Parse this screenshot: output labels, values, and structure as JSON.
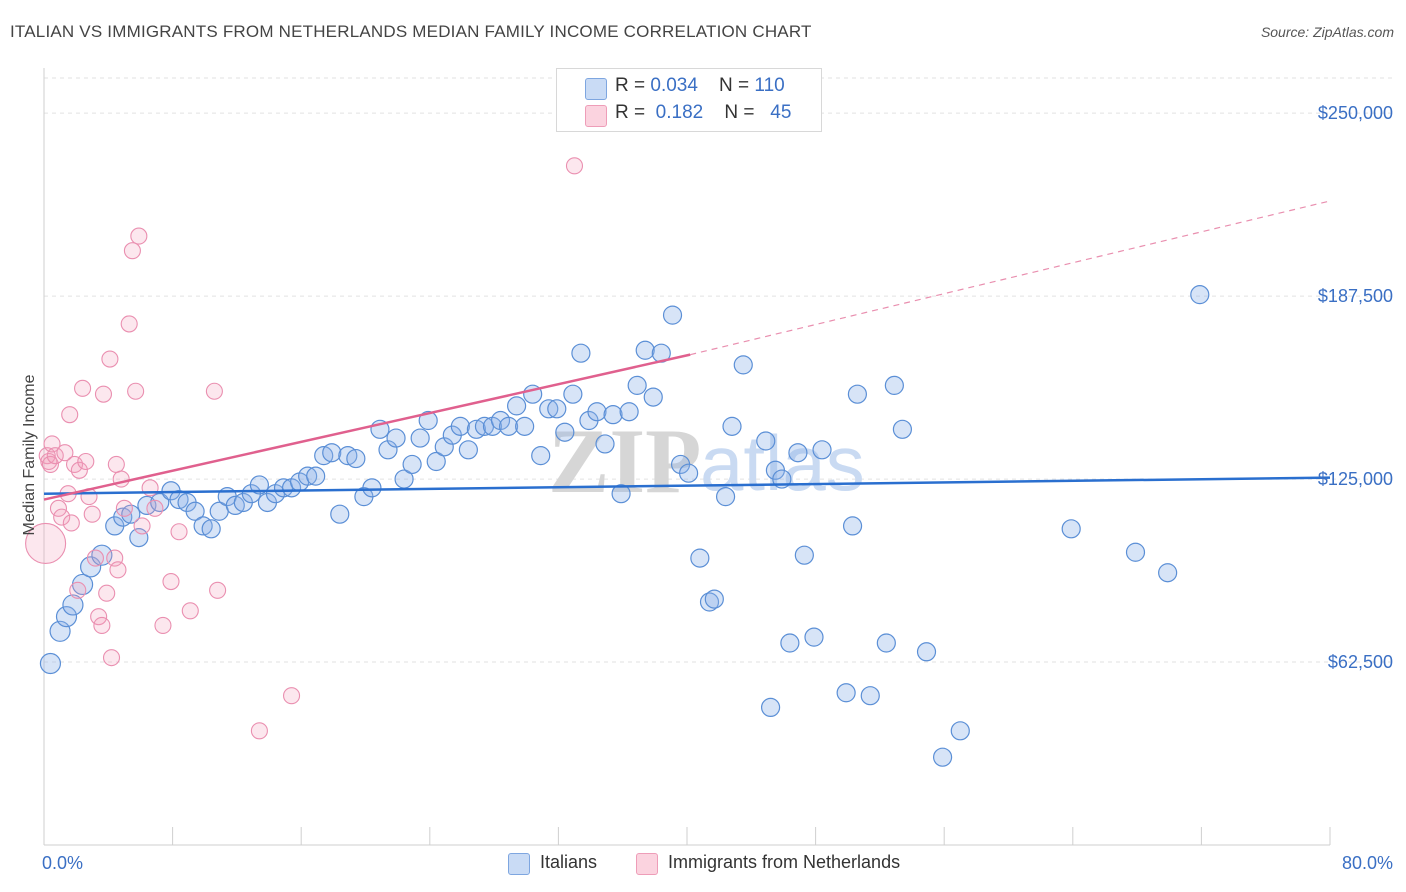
{
  "header": {
    "title": "ITALIAN VS IMMIGRANTS FROM NETHERLANDS MEDIAN FAMILY INCOME CORRELATION CHART",
    "source": "Source: ZipAtlas.com"
  },
  "watermark": {
    "zip": "ZIP",
    "atlas": "atlas"
  },
  "legend_top": {
    "rows": [
      {
        "r_label": "R = ",
        "r_value": "0.034",
        "n_label": "N = ",
        "n_value": "110",
        "color": "#a8c4ef"
      },
      {
        "r_label": "R = ",
        "r_value": "0.182",
        "n_label": "N = ",
        "n_value": "45",
        "color": "#f7b8cb"
      }
    ]
  },
  "colors": {
    "italians_fill": "rgba(140,178,232,0.35)",
    "italians_stroke": "#5b8fd6",
    "italians_line": "#2a6fcf",
    "netherlands_fill": "rgba(244,160,188,0.25)",
    "netherlands_stroke": "#ea8fb0",
    "netherlands_line": "#e0608e",
    "tick_label": "#3a6fc4",
    "grid": "#e2e2e2"
  },
  "chart_data": {
    "type": "scatter",
    "title": "ITALIAN VS IMMIGRANTS FROM NETHERLANDS MEDIAN FAMILY INCOME CORRELATION CHART",
    "xlabel": "",
    "ylabel": "Median Family Income",
    "xlim": [
      0,
      80
    ],
    "ylim": [
      0,
      262000
    ],
    "x_tick_labels": [
      "0.0%",
      "80.0%"
    ],
    "y_ticks": [
      62500,
      125000,
      187500,
      250000
    ],
    "y_tick_labels": [
      "$62,500",
      "$125,000",
      "$187,500",
      "$250,000"
    ],
    "grid": true,
    "legend_placement": "top-center and bottom",
    "series": [
      {
        "name": "Italians",
        "r": 0.034,
        "n": 110,
        "trend": {
          "x": [
            0,
            80
          ],
          "y": [
            120000,
            125500
          ],
          "dashed_extension": false
        },
        "points": [
          [
            0.4,
            62000
          ],
          [
            1.0,
            73000
          ],
          [
            1.4,
            78000
          ],
          [
            1.8,
            82000
          ],
          [
            2.4,
            89000
          ],
          [
            2.9,
            95000
          ],
          [
            3.6,
            99000
          ],
          [
            4.4,
            109000
          ],
          [
            4.9,
            112000
          ],
          [
            5.4,
            113000
          ],
          [
            5.9,
            105000
          ],
          [
            6.4,
            116000
          ],
          [
            7.2,
            117000
          ],
          [
            7.9,
            121000
          ],
          [
            8.4,
            118000
          ],
          [
            8.9,
            117000
          ],
          [
            9.4,
            114000
          ],
          [
            9.9,
            109000
          ],
          [
            10.4,
            108000
          ],
          [
            10.9,
            114000
          ],
          [
            11.4,
            119000
          ],
          [
            11.9,
            116000
          ],
          [
            12.4,
            117000
          ],
          [
            12.9,
            120000
          ],
          [
            13.4,
            123000
          ],
          [
            13.9,
            117000
          ],
          [
            14.4,
            120000
          ],
          [
            14.9,
            122000
          ],
          [
            15.4,
            122000
          ],
          [
            15.9,
            124000
          ],
          [
            16.4,
            126000
          ],
          [
            16.9,
            126000
          ],
          [
            17.4,
            133000
          ],
          [
            17.9,
            134000
          ],
          [
            18.4,
            113000
          ],
          [
            18.9,
            133000
          ],
          [
            19.4,
            132000
          ],
          [
            19.9,
            119000
          ],
          [
            20.4,
            122000
          ],
          [
            20.9,
            142000
          ],
          [
            21.4,
            135000
          ],
          [
            21.9,
            139000
          ],
          [
            22.4,
            125000
          ],
          [
            22.9,
            130000
          ],
          [
            23.4,
            139000
          ],
          [
            23.9,
            145000
          ],
          [
            24.4,
            131000
          ],
          [
            24.9,
            136000
          ],
          [
            25.4,
            140000
          ],
          [
            25.9,
            143000
          ],
          [
            26.4,
            135000
          ],
          [
            26.9,
            142000
          ],
          [
            27.4,
            143000
          ],
          [
            27.9,
            143000
          ],
          [
            28.4,
            145000
          ],
          [
            28.9,
            143000
          ],
          [
            29.4,
            150000
          ],
          [
            29.9,
            143000
          ],
          [
            30.4,
            154000
          ],
          [
            30.9,
            133000
          ],
          [
            31.4,
            149000
          ],
          [
            31.9,
            149000
          ],
          [
            32.4,
            141000
          ],
          [
            32.9,
            154000
          ],
          [
            33.4,
            168000
          ],
          [
            33.9,
            145000
          ],
          [
            34.4,
            148000
          ],
          [
            34.9,
            137000
          ],
          [
            35.4,
            147000
          ],
          [
            35.9,
            120000
          ],
          [
            36.4,
            148000
          ],
          [
            36.9,
            157000
          ],
          [
            37.4,
            169000
          ],
          [
            37.9,
            153000
          ],
          [
            38.4,
            168000
          ],
          [
            39.1,
            181000
          ],
          [
            39.6,
            130000
          ],
          [
            40.1,
            127000
          ],
          [
            40.8,
            98000
          ],
          [
            41.4,
            83000
          ],
          [
            41.7,
            84000
          ],
          [
            42.4,
            119000
          ],
          [
            42.8,
            143000
          ],
          [
            43.5,
            164000
          ],
          [
            45.2,
            47000
          ],
          [
            44.9,
            138000
          ],
          [
            45.5,
            128000
          ],
          [
            45.9,
            125000
          ],
          [
            46.4,
            69000
          ],
          [
            46.9,
            134000
          ],
          [
            47.3,
            99000
          ],
          [
            47.9,
            71000
          ],
          [
            48.4,
            135000
          ],
          [
            49.9,
            52000
          ],
          [
            50.3,
            109000
          ],
          [
            50.6,
            154000
          ],
          [
            51.4,
            51000
          ],
          [
            52.4,
            69000
          ],
          [
            52.9,
            157000
          ],
          [
            53.4,
            142000
          ],
          [
            54.9,
            66000
          ],
          [
            55.9,
            30000
          ],
          [
            57.0,
            39000
          ],
          [
            63.9,
            108000
          ],
          [
            67.9,
            100000
          ],
          [
            69.9,
            93000
          ],
          [
            71.9,
            188000
          ]
        ]
      },
      {
        "name": "Immigrants from Netherlands",
        "r": 0.182,
        "n": 45,
        "trend": {
          "x": [
            0,
            40.2,
            80
          ],
          "y": [
            118000,
            167500,
            220000
          ],
          "dashed_extension": true
        },
        "points": [
          [
            0.1,
            103000
          ],
          [
            0.2,
            133000
          ],
          [
            0.3,
            131000
          ],
          [
            0.4,
            130000
          ],
          [
            0.5,
            137000
          ],
          [
            0.7,
            133000
          ],
          [
            0.9,
            115000
          ],
          [
            1.1,
            112000
          ],
          [
            1.3,
            134000
          ],
          [
            1.5,
            120000
          ],
          [
            1.6,
            147000
          ],
          [
            1.7,
            110000
          ],
          [
            1.9,
            130000
          ],
          [
            2.1,
            87000
          ],
          [
            2.2,
            128000
          ],
          [
            2.4,
            156000
          ],
          [
            2.6,
            131000
          ],
          [
            2.8,
            119000
          ],
          [
            3.0,
            113000
          ],
          [
            3.2,
            98000
          ],
          [
            3.4,
            78000
          ],
          [
            3.6,
            75000
          ],
          [
            3.7,
            154000
          ],
          [
            3.9,
            86000
          ],
          [
            4.1,
            166000
          ],
          [
            4.2,
            64000
          ],
          [
            4.4,
            98000
          ],
          [
            4.5,
            130000
          ],
          [
            4.6,
            94000
          ],
          [
            4.8,
            125000
          ],
          [
            5.0,
            115000
          ],
          [
            5.3,
            178000
          ],
          [
            5.5,
            203000
          ],
          [
            5.7,
            155000
          ],
          [
            5.9,
            208000
          ],
          [
            6.1,
            109000
          ],
          [
            6.6,
            122000
          ],
          [
            6.9,
            115000
          ],
          [
            7.4,
            75000
          ],
          [
            7.9,
            90000
          ],
          [
            8.4,
            107000
          ],
          [
            9.1,
            80000
          ],
          [
            10.6,
            155000
          ],
          [
            10.8,
            87000
          ],
          [
            13.4,
            39000
          ],
          [
            15.4,
            51000
          ],
          [
            33.0,
            232000
          ]
        ]
      }
    ]
  },
  "legend_bottom": [
    {
      "label": "Italians",
      "color": "#a8c4ef"
    },
    {
      "label": "Immigrants from Netherlands",
      "color": "#f7b8cb"
    }
  ]
}
